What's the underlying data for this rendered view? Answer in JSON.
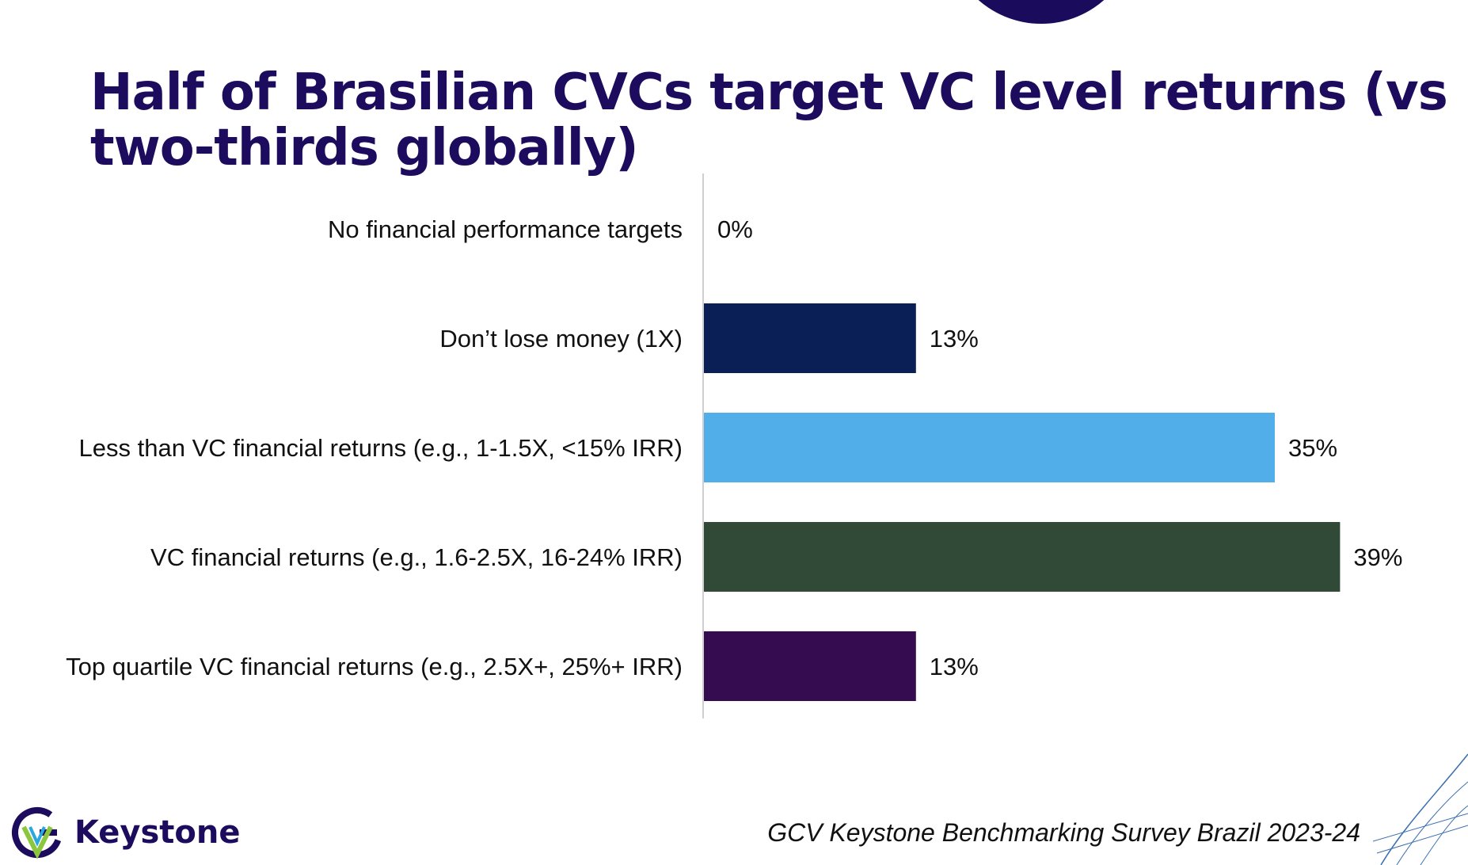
{
  "title": {
    "line1": "Half of Brasilian CVCs target VC level returns (vs",
    "line2": "two-thirds globally)"
  },
  "chart_data": {
    "type": "bar",
    "orientation": "horizontal",
    "categories": [
      "No financial performance targets",
      "Don’t lose money (1X)",
      "Less than VC financial returns (e.g., 1-1.5X, <15% IRR)",
      "VC financial returns (e.g., 1.6-2.5X, 16-24% IRR)",
      "Top quartile VC financial returns (e.g., 2.5X+, 25%+ IRR)"
    ],
    "values": [
      0,
      13,
      35,
      39,
      13
    ],
    "value_labels": [
      "0%",
      "13%",
      "35%",
      "39%",
      "13%"
    ],
    "colors": [
      "#0a1f56",
      "#0a1f56",
      "#52aee9",
      "#314a38",
      "#350c4f"
    ],
    "xlim": [
      0,
      40
    ],
    "grid": false
  },
  "footer": {
    "source": "GCV Keystone Benchmarking Survey Brazil 2023-24",
    "logo_text": "Keystone",
    "logo_icon": "keystone-g-logo-icon"
  },
  "colors": {
    "title": "#1d0b5e",
    "axis_line": "#d0d0d0"
  }
}
